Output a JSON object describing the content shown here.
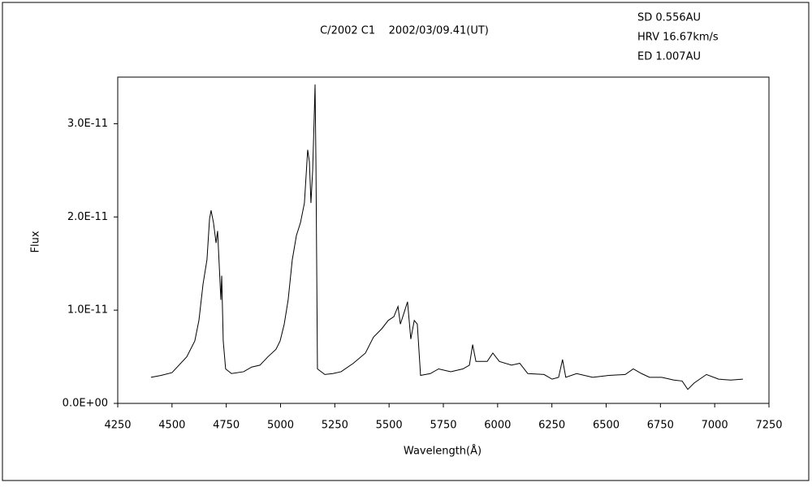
{
  "chart_data": {
    "type": "line",
    "title": "C/2002 C1    2002/03/09.41(UT)",
    "annotations": [
      "SD 0.556AU",
      "HRV 16.67km/s",
      "ED 1.007AU"
    ],
    "x_label": "Wavelength(Å)",
    "y_label": "Flux",
    "x": [
      4403,
      4450,
      4500,
      4568,
      4605,
      4624,
      4643,
      4661,
      4673,
      4680,
      4691,
      4703,
      4710,
      4718,
      4725,
      4729,
      4736,
      4747,
      4774,
      4830,
      4867,
      4905,
      4942,
      4979,
      4998,
      5017,
      5035,
      5054,
      5073,
      5092,
      5110,
      5125,
      5133,
      5140,
      5148,
      5155,
      5159,
      5163,
      5170,
      5204,
      5241,
      5279,
      5335,
      5391,
      5428,
      5466,
      5496,
      5522,
      5541,
      5552,
      5570,
      5585,
      5600,
      5616,
      5630,
      5645,
      5690,
      5728,
      5784,
      5840,
      5870,
      5885,
      5900,
      5952,
      5978,
      6008,
      6064,
      6102,
      6139,
      6214,
      6251,
      6281,
      6299,
      6314,
      6364,
      6438,
      6513,
      6588,
      6625,
      6663,
      6700,
      6756,
      6812,
      6850,
      6876,
      6906,
      6962,
      7018,
      7074,
      7130
    ],
    "series": [
      {
        "name": "Flux",
        "color": "#000000",
        "values": [
          2.8e-12,
          3e-12,
          3.3e-12,
          5e-12,
          6.7e-12,
          8.9e-12,
          1.28e-11,
          1.54e-11,
          1.98e-11,
          2.07e-11,
          1.94e-11,
          1.72e-11,
          1.85e-11,
          1.46e-11,
          1.11e-11,
          1.37e-11,
          6.7e-12,
          3.7e-12,
          3.2e-12,
          3.4e-12,
          3.9e-12,
          4.1e-12,
          5e-12,
          5.8e-12,
          6.7e-12,
          8.5e-12,
          1.11e-11,
          1.54e-11,
          1.8e-11,
          1.94e-11,
          2.15e-11,
          2.72e-11,
          2.59e-11,
          2.15e-11,
          2.5e-11,
          3.07e-11,
          3.42e-11,
          2.59e-11,
          3.7e-12,
          3.1e-12,
          3.2e-12,
          3.4e-12,
          4.3e-12,
          5.4e-12,
          7.1e-12,
          8e-12,
          8.9e-12,
          9.3e-12,
          1.04e-11,
          8.5e-12,
          9.8e-12,
          1.09e-11,
          6.9e-12,
          8.9e-12,
          8.5e-12,
          3e-12,
          3.2e-12,
          3.7e-12,
          3.4e-12,
          3.7e-12,
          4.1e-12,
          6.3e-12,
          4.5e-12,
          4.5e-12,
          5.4e-12,
          4.5e-12,
          4.1e-12,
          4.3e-12,
          3.2e-12,
          3.1e-12,
          2.6e-12,
          2.8e-12,
          4.7e-12,
          2.8e-12,
          3.2e-12,
          2.8e-12,
          3e-12,
          3.1e-12,
          3.7e-12,
          3.2e-12,
          2.8e-12,
          2.8e-12,
          2.5e-12,
          2.4e-12,
          1.5e-12,
          2.2e-12,
          3.1e-12,
          2.6e-12,
          2.5e-12,
          2.6e-12
        ]
      }
    ],
    "xlim": [
      4250,
      7250
    ],
    "xticks": [
      4250,
      4500,
      4750,
      5000,
      5250,
      5500,
      5750,
      6000,
      6250,
      6500,
      6750,
      7000,
      7250
    ],
    "ylim": [
      0,
      3.5e-11
    ],
    "yticks": [
      {
        "value": 0,
        "label": "0.0E+00"
      },
      {
        "value": 1e-11,
        "label": "1.0E-11"
      },
      {
        "value": 2e-11,
        "label": "2.0E-11"
      },
      {
        "value": 3e-11,
        "label": "3.0E-11"
      }
    ],
    "grid": false
  }
}
